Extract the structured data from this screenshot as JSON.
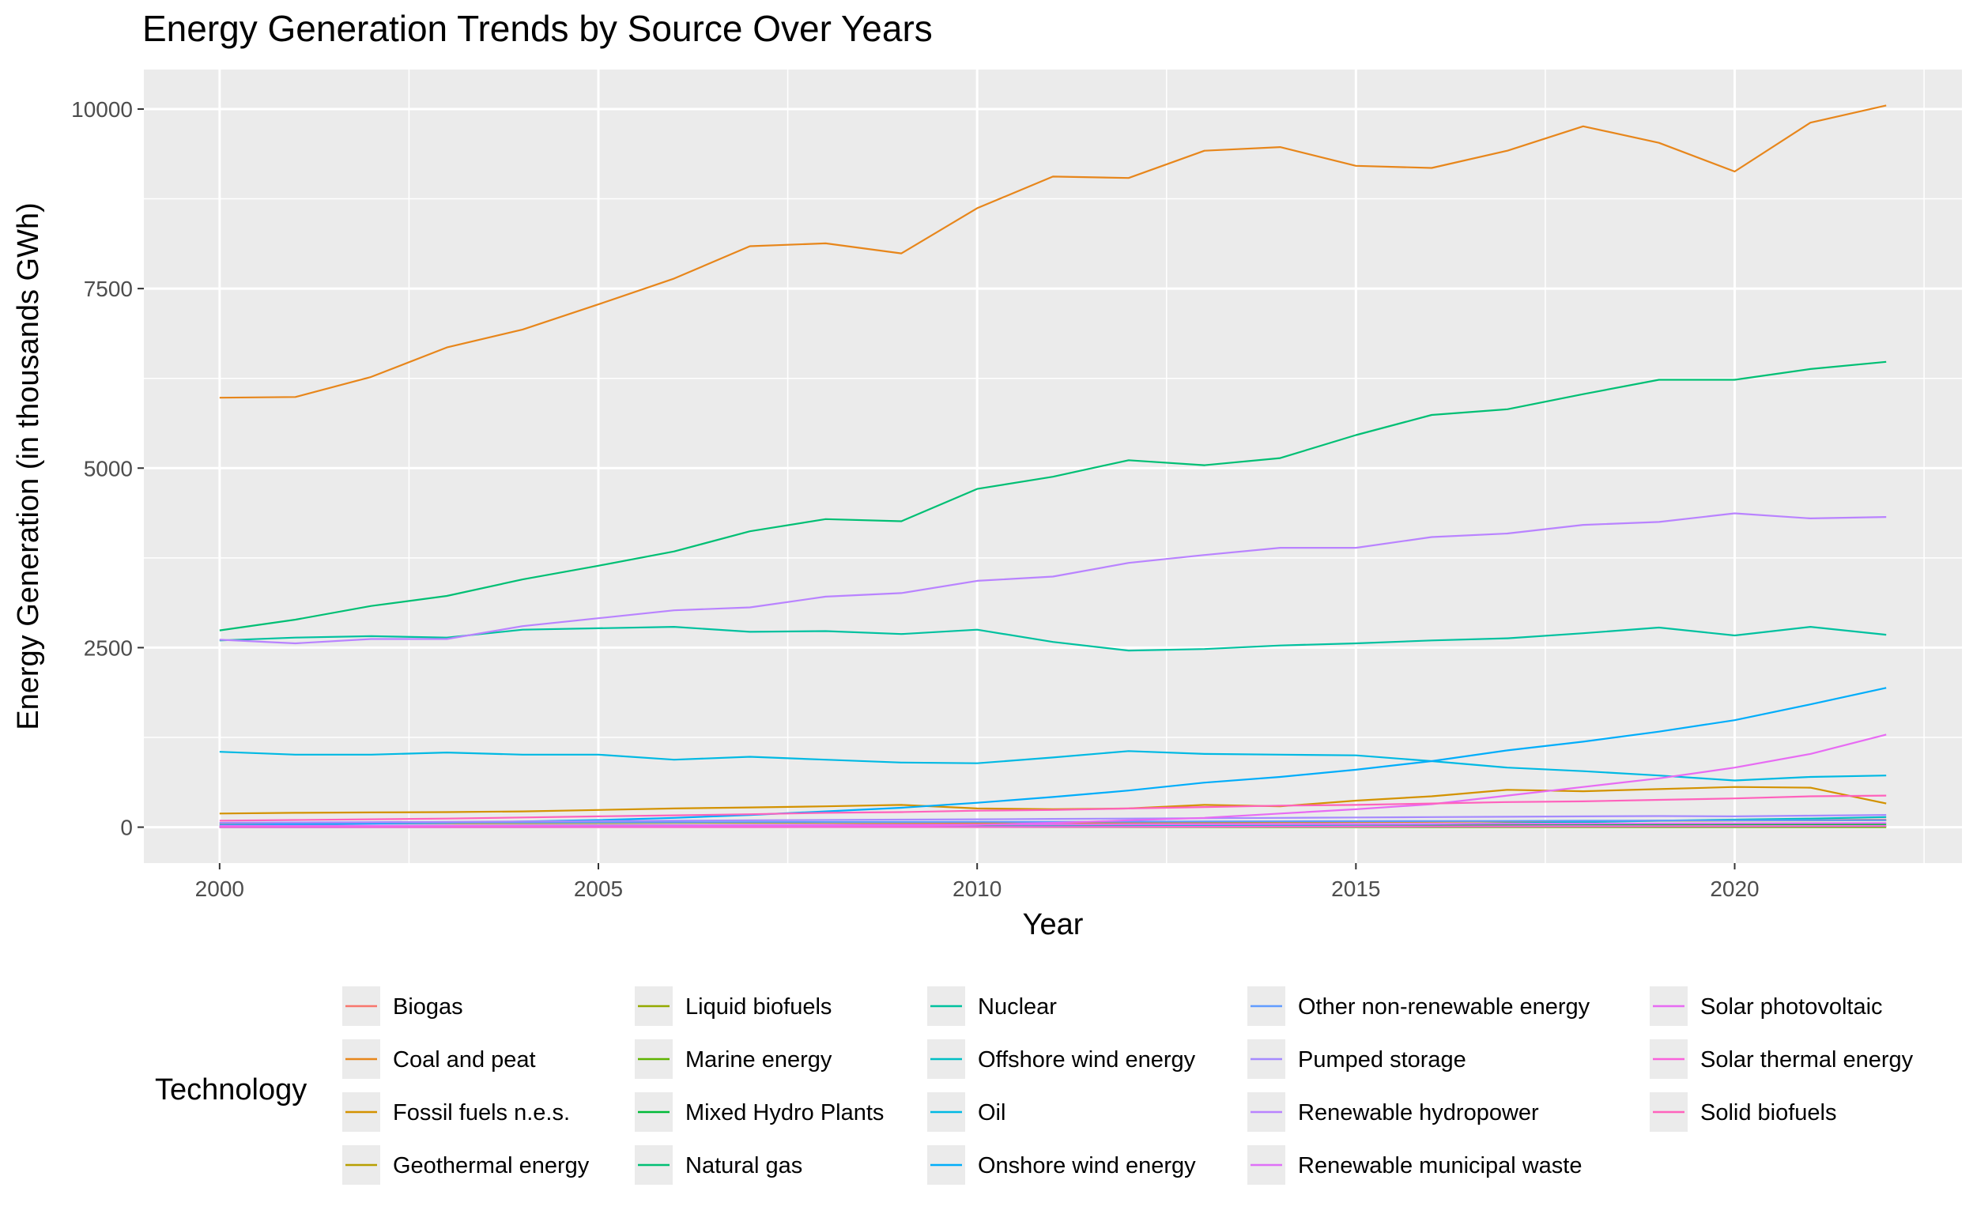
{
  "chart_data": {
    "type": "line",
    "title": "Energy Generation Trends by Source Over Years",
    "xlabel": "Year",
    "ylabel": "Energy Generation (in thousands GWh)",
    "xlim": [
      1999,
      2023
    ],
    "ylim": [
      -500,
      10550
    ],
    "x_ticks": [
      2000,
      2005,
      2010,
      2015,
      2020
    ],
    "y_ticks": [
      0,
      2500,
      5000,
      7500,
      10000
    ],
    "grid": true,
    "legend_title": "Technology",
    "legend_position": "bottom",
    "x": [
      2000,
      2001,
      2002,
      2003,
      2004,
      2005,
      2006,
      2007,
      2008,
      2009,
      2010,
      2011,
      2012,
      2013,
      2014,
      2015,
      2016,
      2017,
      2018,
      2019,
      2020,
      2021,
      2022
    ],
    "series": [
      {
        "name": "Biogas",
        "color": "#F8766D",
        "values": [
          10,
          12,
          14,
          16,
          18,
          22,
          26,
          30,
          35,
          40,
          45,
          50,
          55,
          60,
          65,
          70,
          75,
          80,
          85,
          90,
          95,
          100,
          105
        ]
      },
      {
        "name": "Coal and peat",
        "color": "#E7861B",
        "values": [
          5980,
          5990,
          6270,
          6680,
          6930,
          7280,
          7640,
          8090,
          8130,
          7990,
          8620,
          9060,
          9040,
          9420,
          9470,
          9210,
          9180,
          9420,
          9760,
          9530,
          9130,
          9810,
          10050
        ]
      },
      {
        "name": "Fossil fuels n.e.s.",
        "color": "#D39200",
        "values": [
          190,
          200,
          205,
          210,
          220,
          240,
          260,
          275,
          290,
          310,
          260,
          250,
          260,
          310,
          290,
          370,
          430,
          520,
          500,
          530,
          560,
          550,
          330
        ]
      },
      {
        "name": "Geothermal energy",
        "color": "#B79F00",
        "values": [
          50,
          52,
          53,
          55,
          56,
          57,
          59,
          61,
          63,
          66,
          68,
          69,
          70,
          71,
          74,
          76,
          79,
          82,
          85,
          89,
          92,
          94,
          96
        ]
      },
      {
        "name": "Liquid biofuels",
        "color": "#93AA00",
        "values": [
          2,
          2,
          2,
          3,
          3,
          3,
          4,
          4,
          5,
          5,
          6,
          6,
          7,
          7,
          8,
          8,
          9,
          9,
          10,
          10,
          10,
          11,
          11
        ]
      },
      {
        "name": "Marine energy",
        "color": "#5EB300",
        "values": [
          1,
          1,
          1,
          1,
          1,
          1,
          1,
          1,
          1,
          1,
          1,
          1,
          1,
          1,
          1,
          1,
          1,
          1,
          1,
          1,
          1,
          1,
          1
        ]
      },
      {
        "name": "Mixed Hydro Plants",
        "color": "#00BA38",
        "values": [
          20,
          21,
          22,
          22,
          23,
          24,
          25,
          26,
          27,
          28,
          29,
          30,
          31,
          32,
          33,
          34,
          35,
          36,
          37,
          38,
          39,
          40,
          41
        ]
      },
      {
        "name": "Natural gas",
        "color": "#00BF74",
        "values": [
          2740,
          2890,
          3080,
          3220,
          3450,
          3640,
          3840,
          4120,
          4290,
          4260,
          4710,
          4880,
          5110,
          5040,
          5140,
          5460,
          5740,
          5820,
          6030,
          6230,
          6230,
          6380,
          6480
        ]
      },
      {
        "name": "Nuclear",
        "color": "#00C19F",
        "values": [
          2600,
          2640,
          2660,
          2640,
          2750,
          2770,
          2790,
          2720,
          2730,
          2690,
          2750,
          2580,
          2460,
          2480,
          2530,
          2560,
          2600,
          2630,
          2700,
          2780,
          2670,
          2790,
          2680
        ]
      },
      {
        "name": "Offshore wind energy",
        "color": "#00BFC4",
        "values": [
          0,
          0,
          1,
          1,
          1,
          2,
          2,
          3,
          3,
          4,
          7,
          10,
          14,
          20,
          25,
          35,
          40,
          55,
          70,
          90,
          105,
          120,
          140
        ]
      },
      {
        "name": "Oil",
        "color": "#00B9E3",
        "values": [
          1050,
          1010,
          1010,
          1040,
          1010,
          1010,
          940,
          980,
          940,
          900,
          890,
          970,
          1060,
          1020,
          1010,
          1000,
          920,
          830,
          780,
          720,
          650,
          700,
          720
        ]
      },
      {
        "name": "Onshore wind energy",
        "color": "#00ADFA",
        "values": [
          30,
          40,
          50,
          60,
          80,
          100,
          130,
          170,
          220,
          270,
          340,
          420,
          510,
          620,
          700,
          800,
          920,
          1070,
          1190,
          1330,
          1490,
          1710,
          1940
        ]
      },
      {
        "name": "Other non-renewable energy",
        "color": "#619CFF",
        "values": [
          60,
          62,
          63,
          64,
          66,
          67,
          68,
          70,
          71,
          72,
          74,
          75,
          77,
          79,
          81,
          83,
          85,
          87,
          90,
          92,
          94,
          96,
          98
        ]
      },
      {
        "name": "Pumped storage",
        "color": "#A58AFF",
        "values": [
          60,
          65,
          70,
          75,
          80,
          85,
          90,
          95,
          100,
          105,
          110,
          115,
          120,
          125,
          130,
          135,
          140,
          145,
          150,
          155,
          150,
          160,
          170
        ]
      },
      {
        "name": "Renewable hydropower",
        "color": "#B983FF",
        "values": [
          2610,
          2560,
          2620,
          2620,
          2800,
          2910,
          3020,
          3060,
          3210,
          3260,
          3430,
          3490,
          3680,
          3790,
          3890,
          3890,
          4040,
          4090,
          4210,
          4250,
          4370,
          4300,
          4320
        ]
      },
      {
        "name": "Renewable municipal waste",
        "color": "#DF70F8",
        "values": [
          20,
          21,
          22,
          23,
          24,
          25,
          26,
          28,
          30,
          32,
          34,
          36,
          38,
          40,
          42,
          44,
          46,
          48,
          50,
          52,
          54,
          56,
          58
        ]
      },
      {
        "name": "Solar photovoltaic",
        "color": "#E76BF3",
        "values": [
          1,
          1,
          1,
          1,
          2,
          3,
          5,
          7,
          12,
          20,
          32,
          60,
          95,
          130,
          190,
          250,
          320,
          440,
          560,
          680,
          830,
          1020,
          1290
        ]
      },
      {
        "name": "Solar thermal energy",
        "color": "#FA62DB",
        "values": [
          1,
          1,
          1,
          1,
          1,
          1,
          1,
          1,
          2,
          2,
          2,
          3,
          4,
          6,
          8,
          9,
          10,
          11,
          12,
          13,
          13,
          14,
          15
        ]
      },
      {
        "name": "Solid biofuels",
        "color": "#FF62BC",
        "values": [
          90,
          100,
          110,
          120,
          135,
          150,
          165,
          180,
          200,
          210,
          230,
          240,
          260,
          280,
          300,
          310,
          330,
          350,
          360,
          380,
          400,
          430,
          440
        ]
      }
    ]
  }
}
